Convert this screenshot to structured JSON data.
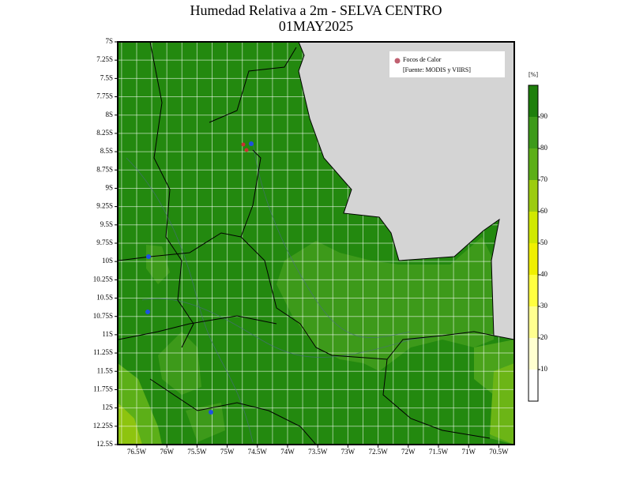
{
  "title": "Humedad Relativa a 2m - SELVA CENTRO",
  "subtitle": "01MAY2025",
  "legend": {
    "item": "Focos de Calor",
    "source": "[Fuente: MODIS y VIIRS]"
  },
  "colorbar": {
    "unit": "[%]",
    "ticks": [
      10,
      20,
      30,
      40,
      50,
      60,
      70,
      80,
      90
    ]
  },
  "lon_labels": [
    "76.5W",
    "76W",
    "75.5W",
    "75W",
    "74.5W",
    "74W",
    "73.5W",
    "73W",
    "72.5W",
    "72W",
    "71.5W",
    "71W",
    "70.5W"
  ],
  "lat_labels": [
    "7S",
    "7.25S",
    "7.5S",
    "7.75S",
    "8S",
    "8.25S",
    "8.5S",
    "8.75S",
    "9S",
    "9.25S",
    "9.5S",
    "9.75S",
    "10S",
    "10.25S",
    "10.5S",
    "10.75S",
    "11S",
    "11.25S",
    "11.5S",
    "11.75S",
    "12S",
    "12.25S",
    "12.5S"
  ]
}
